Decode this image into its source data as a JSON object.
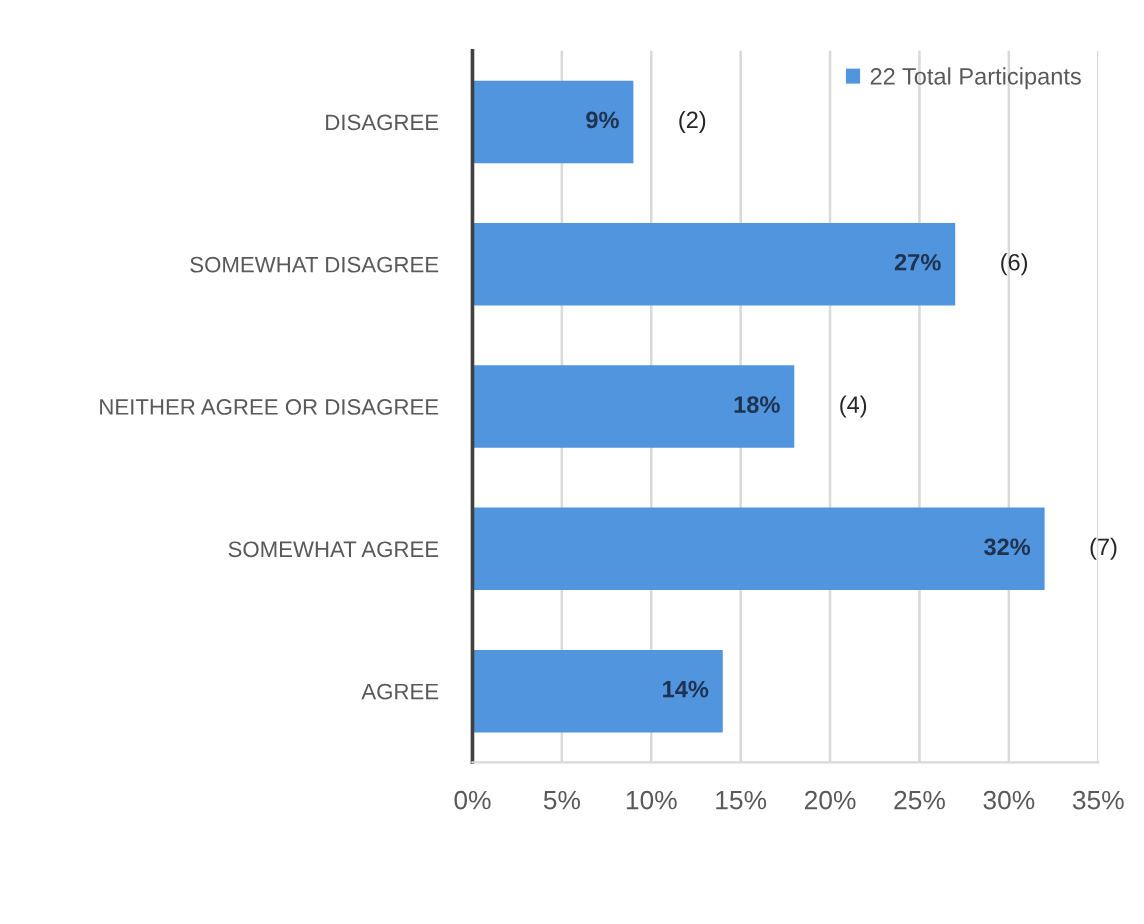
{
  "chart_data": {
    "type": "bar",
    "orientation": "horizontal",
    "categories": [
      "DISAGREE",
      "SOMEWHAT DISAGREE",
      "NEITHER AGREE OR DISAGREE",
      "SOMEWHAT AGREE",
      "AGREE"
    ],
    "series": [
      {
        "name": "22 Total Participants",
        "color": "#5095dd",
        "values": [
          9,
          27,
          18,
          32,
          14
        ],
        "value_labels": [
          "9%",
          "27%",
          "18%",
          "32%",
          "14%"
        ]
      }
    ],
    "xlim": [
      0,
      35
    ],
    "xticks": [
      {
        "value": 0,
        "label": "0%"
      },
      {
        "value": 5,
        "label": "5%"
      },
      {
        "value": 10,
        "label": "10%"
      },
      {
        "value": 15,
        "label": "15%"
      },
      {
        "value": 20,
        "label": "20%"
      },
      {
        "value": 25,
        "label": "25%"
      },
      {
        "value": 30,
        "label": "30%"
      },
      {
        "value": 35,
        "label": "35%"
      }
    ],
    "grid": "x",
    "legend": "top right",
    "annotations": [
      {
        "text": "(2)",
        "x": 9,
        "y": "DISAGREE"
      },
      {
        "text": "(6)",
        "x": 27,
        "y": "SOMEWHAT DISAGREE"
      },
      {
        "text": "(4)",
        "x": 18,
        "y": "NEITHER AGREE OR DISAGREE"
      },
      {
        "text": "(7)",
        "x": 32,
        "y": "SOMEWHAT AGREE"
      }
    ]
  }
}
